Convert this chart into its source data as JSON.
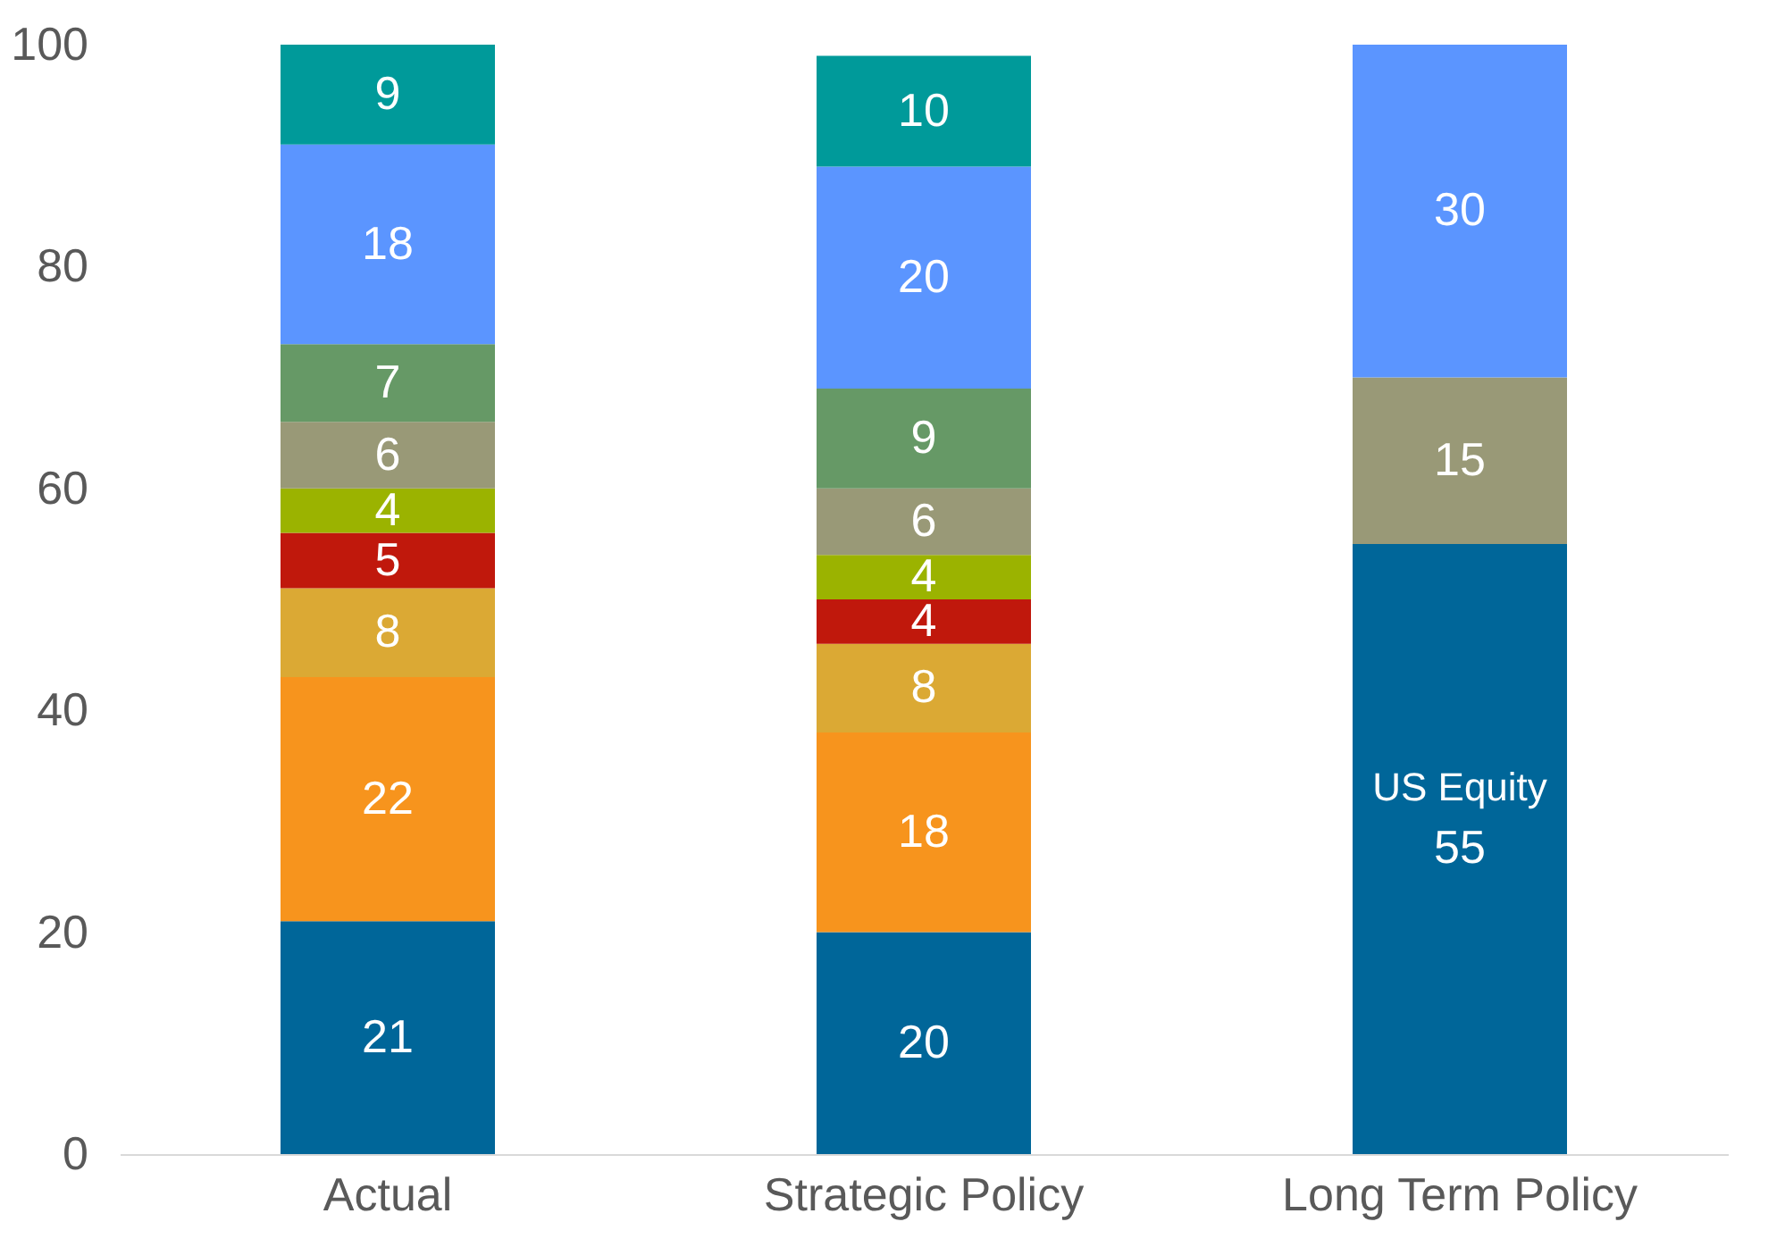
{
  "chart_data": {
    "type": "bar",
    "stacked": true,
    "data_labels": true,
    "grid": false,
    "categories": [
      "Actual",
      "Strategic Policy",
      "Long Term Policy"
    ],
    "ylim": [
      0,
      100
    ],
    "yticks": [
      0,
      20,
      40,
      60,
      80,
      100
    ],
    "series": [
      {
        "color": "#006699",
        "values": [
          21,
          20,
          55
        ]
      },
      {
        "color": "#f7941d",
        "values": [
          22,
          18,
          null
        ]
      },
      {
        "color": "#dba934",
        "values": [
          8,
          8,
          null
        ]
      },
      {
        "color": "#c0180c",
        "values": [
          5,
          4,
          null
        ]
      },
      {
        "color": "#9bb300",
        "values": [
          4,
          4,
          null
        ]
      },
      {
        "color": "#999977",
        "values": [
          6,
          6,
          15
        ]
      },
      {
        "color": "#669966",
        "values": [
          7,
          9,
          null
        ]
      },
      {
        "color": "#5b95ff",
        "values": [
          18,
          20,
          30
        ]
      },
      {
        "color": "#009a9a",
        "values": [
          9,
          10,
          null
        ]
      }
    ],
    "annotations": [
      "US Equity"
    ]
  }
}
